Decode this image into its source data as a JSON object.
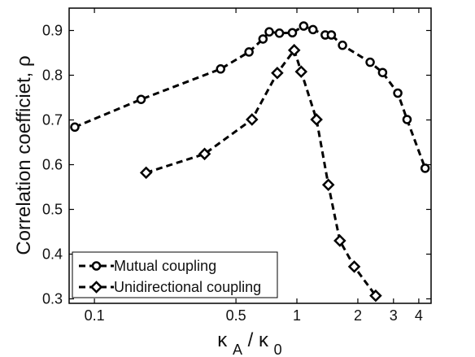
{
  "chart_data": {
    "type": "line",
    "title": "",
    "xlabel": "κA / κ0",
    "xlabel_parts": {
      "main": "κ",
      "sub": "A",
      "separator": " / ",
      "main2": "κ",
      "sub2": "0"
    },
    "ylabel": "Correlation coefficiet, ρ",
    "x_scale": "log",
    "xlim": [
      0.075,
      4.6
    ],
    "ylim": [
      0.29,
      0.95
    ],
    "x_ticks": [
      0.1,
      0.5,
      1,
      2,
      3,
      4
    ],
    "x_tick_labels": [
      "0.1",
      "0.5",
      "1",
      "2",
      "3",
      "4"
    ],
    "y_ticks": [
      0.3,
      0.4,
      0.5,
      0.6,
      0.7,
      0.8,
      0.9
    ],
    "y_tick_labels": [
      "0.3",
      "0.4",
      "0.5",
      "0.6",
      "0.7",
      "0.8",
      "0.9"
    ],
    "grid": false,
    "legend_position": "bottom-left",
    "series": [
      {
        "name": "Mutual coupling",
        "marker": "circle",
        "color": "#000000",
        "line_style": "dashed",
        "points": [
          {
            "x": 0.08,
            "y": 0.684
          },
          {
            "x": 0.17,
            "y": 0.746
          },
          {
            "x": 0.42,
            "y": 0.814
          },
          {
            "x": 0.58,
            "y": 0.852
          },
          {
            "x": 0.68,
            "y": 0.881
          },
          {
            "x": 0.73,
            "y": 0.897
          },
          {
            "x": 0.82,
            "y": 0.894
          },
          {
            "x": 0.95,
            "y": 0.895
          },
          {
            "x": 1.08,
            "y": 0.91
          },
          {
            "x": 1.2,
            "y": 0.902
          },
          {
            "x": 1.38,
            "y": 0.89
          },
          {
            "x": 1.48,
            "y": 0.89
          },
          {
            "x": 1.68,
            "y": 0.867
          },
          {
            "x": 2.3,
            "y": 0.829
          },
          {
            "x": 2.65,
            "y": 0.806
          },
          {
            "x": 3.15,
            "y": 0.76
          },
          {
            "x": 3.5,
            "y": 0.701
          },
          {
            "x": 4.3,
            "y": 0.592
          }
        ]
      },
      {
        "name": "Unidirectional coupling",
        "marker": "diamond",
        "color": "#000000",
        "line_style": "dashed",
        "points": [
          {
            "x": 0.18,
            "y": 0.582
          },
          {
            "x": 0.35,
            "y": 0.624
          },
          {
            "x": 0.6,
            "y": 0.701
          },
          {
            "x": 0.8,
            "y": 0.805
          },
          {
            "x": 0.97,
            "y": 0.856
          },
          {
            "x": 1.05,
            "y": 0.808
          },
          {
            "x": 1.25,
            "y": 0.701
          },
          {
            "x": 1.43,
            "y": 0.555
          },
          {
            "x": 1.63,
            "y": 0.43
          },
          {
            "x": 1.92,
            "y": 0.372
          },
          {
            "x": 2.45,
            "y": 0.307
          }
        ]
      }
    ]
  }
}
